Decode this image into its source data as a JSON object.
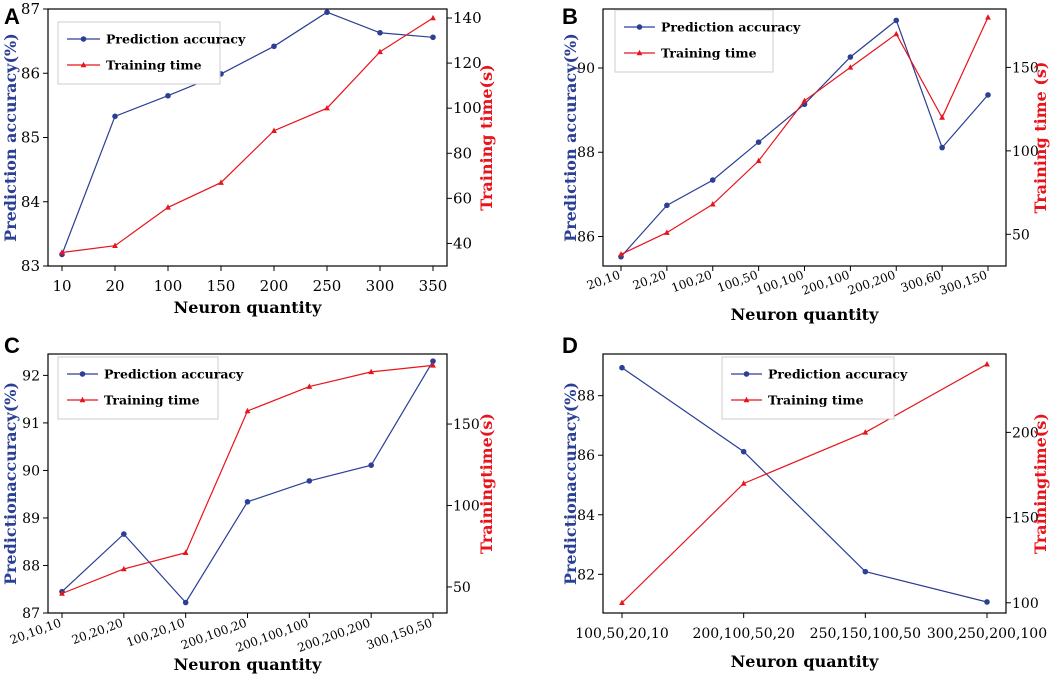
{
  "colors": {
    "acc": "#2b3f94",
    "time": "#e8141c",
    "axis": "#000000"
  },
  "chart_data": [
    {
      "panel": "A",
      "type": "line",
      "xlabel": "Neuron quantity",
      "categories": [
        "10",
        "20",
        "100",
        "150",
        "200",
        "250",
        "300",
        "350"
      ],
      "series": [
        {
          "name": "Prediction accuracy",
          "axis": "left",
          "values": [
            83.18,
            85.33,
            85.65,
            85.99,
            86.42,
            86.95,
            86.63,
            86.56
          ]
        },
        {
          "name": "Training time",
          "axis": "right",
          "values": [
            36,
            39,
            56,
            67,
            90,
            100,
            125,
            140
          ]
        }
      ],
      "ylabel_left": "Prediction accuracy(%)",
      "ylim_left": [
        83,
        87
      ],
      "yticks_left": [
        "83",
        "84",
        "85",
        "86",
        "87"
      ],
      "ylabel_right": "Training time(s)",
      "ylim_right": [
        30,
        144
      ],
      "yticks_right": [
        "40",
        "60",
        "80",
        "100",
        "120",
        "140"
      ],
      "legend": "top-left"
    },
    {
      "panel": "B",
      "type": "line",
      "xlabel": "Neuron quantity",
      "categories": [
        "20,10",
        "20,20",
        "100,20",
        "100,50",
        "100,100",
        "200,100",
        "200,200",
        "300,60",
        "300,150"
      ],
      "series": [
        {
          "name": "Prediction accuracy",
          "axis": "left",
          "values": [
            85.52,
            86.74,
            87.34,
            88.24,
            89.14,
            90.26,
            91.13,
            88.11,
            89.36
          ]
        },
        {
          "name": "Training time",
          "axis": "right",
          "values": [
            38,
            51,
            68,
            94,
            130,
            150,
            170,
            120,
            180
          ]
        }
      ],
      "ylabel_left": "Prediction accuracy(%)",
      "ylim_left": [
        85.3,
        91.4
      ],
      "yticks_left": [
        "86",
        "88",
        "90"
      ],
      "ylabel_right": "Training  time (s)",
      "ylim_right": [
        31,
        185
      ],
      "yticks_right": [
        "50",
        "100",
        "150"
      ],
      "legend": "top-left"
    },
    {
      "panel": "C",
      "type": "line",
      "xlabel": "Neuron quantity",
      "categories": [
        "20,10,10",
        "20,20,20",
        "100,20,10",
        "200,100,20",
        "200,100,100",
        "200,200,200",
        "300,150,50"
      ],
      "series": [
        {
          "name": "Prediction accuracy",
          "axis": "left",
          "values": [
            87.45,
            88.66,
            87.22,
            89.34,
            89.78,
            90.11,
            92.3
          ]
        },
        {
          "name": "Training time",
          "axis": "right",
          "values": [
            46,
            61,
            71,
            158,
            173,
            182,
            186
          ]
        }
      ],
      "ylabel_left": "Predictionaccuracy(%)",
      "ylim_left": [
        87,
        92.45
      ],
      "yticks_left": [
        "87",
        "88",
        "89",
        "90",
        "91",
        "92"
      ],
      "ylabel_right": "Trainingtime(s)",
      "ylim_right": [
        34,
        193
      ],
      "yticks_right": [
        "50",
        "100",
        "150"
      ],
      "legend": "top-left"
    },
    {
      "panel": "D",
      "type": "line",
      "xlabel": "Neuron quantity",
      "categories": [
        "100,50,20,10",
        "200,100,50,20",
        "250,150,100,50",
        "300,250,200,100"
      ],
      "series": [
        {
          "name": "Prediction accuracy",
          "axis": "left",
          "values": [
            88.94,
            86.12,
            82.09,
            81.07
          ]
        },
        {
          "name": "Training time",
          "axis": "right",
          "values": [
            100,
            170,
            200,
            240
          ]
        }
      ],
      "ylabel_left": "Predictionaccuracy(%)",
      "ylim_left": [
        80.7,
        89.4
      ],
      "yticks_left": [
        "82",
        "84",
        "86",
        "88"
      ],
      "ylabel_right": "Trainingtime(s)",
      "ylim_right": [
        94,
        246
      ],
      "yticks_right": [
        "100",
        "150",
        "200"
      ],
      "legend": "top-center"
    }
  ]
}
